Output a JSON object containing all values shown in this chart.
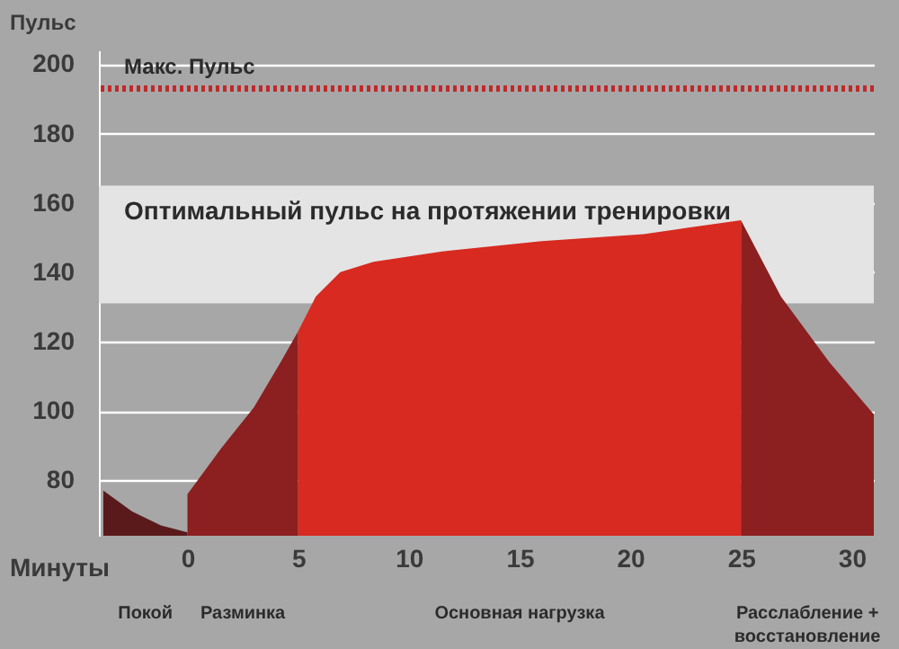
{
  "chart_data": {
    "type": "area",
    "ylabel": "Пульс",
    "xlabel": "Минуты",
    "xlim": [
      -4,
      31
    ],
    "xticks": [
      0,
      5,
      10,
      15,
      20,
      25,
      30
    ],
    "ylim": [
      64,
      204
    ],
    "yticks": [
      80,
      100,
      120,
      140,
      160,
      180,
      200
    ],
    "grid": "y",
    "series": [
      {
        "color": "#5a1a1c",
        "x": [
          -3.8,
          -2.5,
          -1.2,
          0
        ],
        "values": [
          77,
          71,
          67,
          65
        ]
      },
      {
        "color": "#8c1f20",
        "x": [
          0,
          1.5,
          3,
          4.2,
          5
        ],
        "values": [
          76,
          89,
          101,
          114,
          123
        ]
      },
      {
        "color": "#d82a20",
        "x": [
          5,
          5.8,
          6.9,
          8.4,
          11.5,
          16,
          20.6,
          25
        ],
        "values": [
          123,
          133,
          140,
          143,
          146,
          149,
          151,
          155
        ]
      },
      {
        "color": "#8c1f20",
        "x": [
          25,
          26.8,
          29,
          31
        ],
        "values": [
          155,
          133,
          114,
          99
        ]
      }
    ],
    "ref_lines": [
      {
        "axis": "y",
        "value": 193,
        "label": "Макс. Пульс",
        "color": "#c0282a",
        "line_style": "dotted"
      }
    ],
    "bands": [
      {
        "axis": "y",
        "from": 131,
        "to": 165,
        "label": "Оптимальный пульс на протяжении тренировки",
        "color": "#e4e4e4"
      }
    ],
    "annotations": [
      "Покой",
      "Разминка",
      "Основная нагрузка",
      "Расслабление +\nвосстановление"
    ]
  }
}
